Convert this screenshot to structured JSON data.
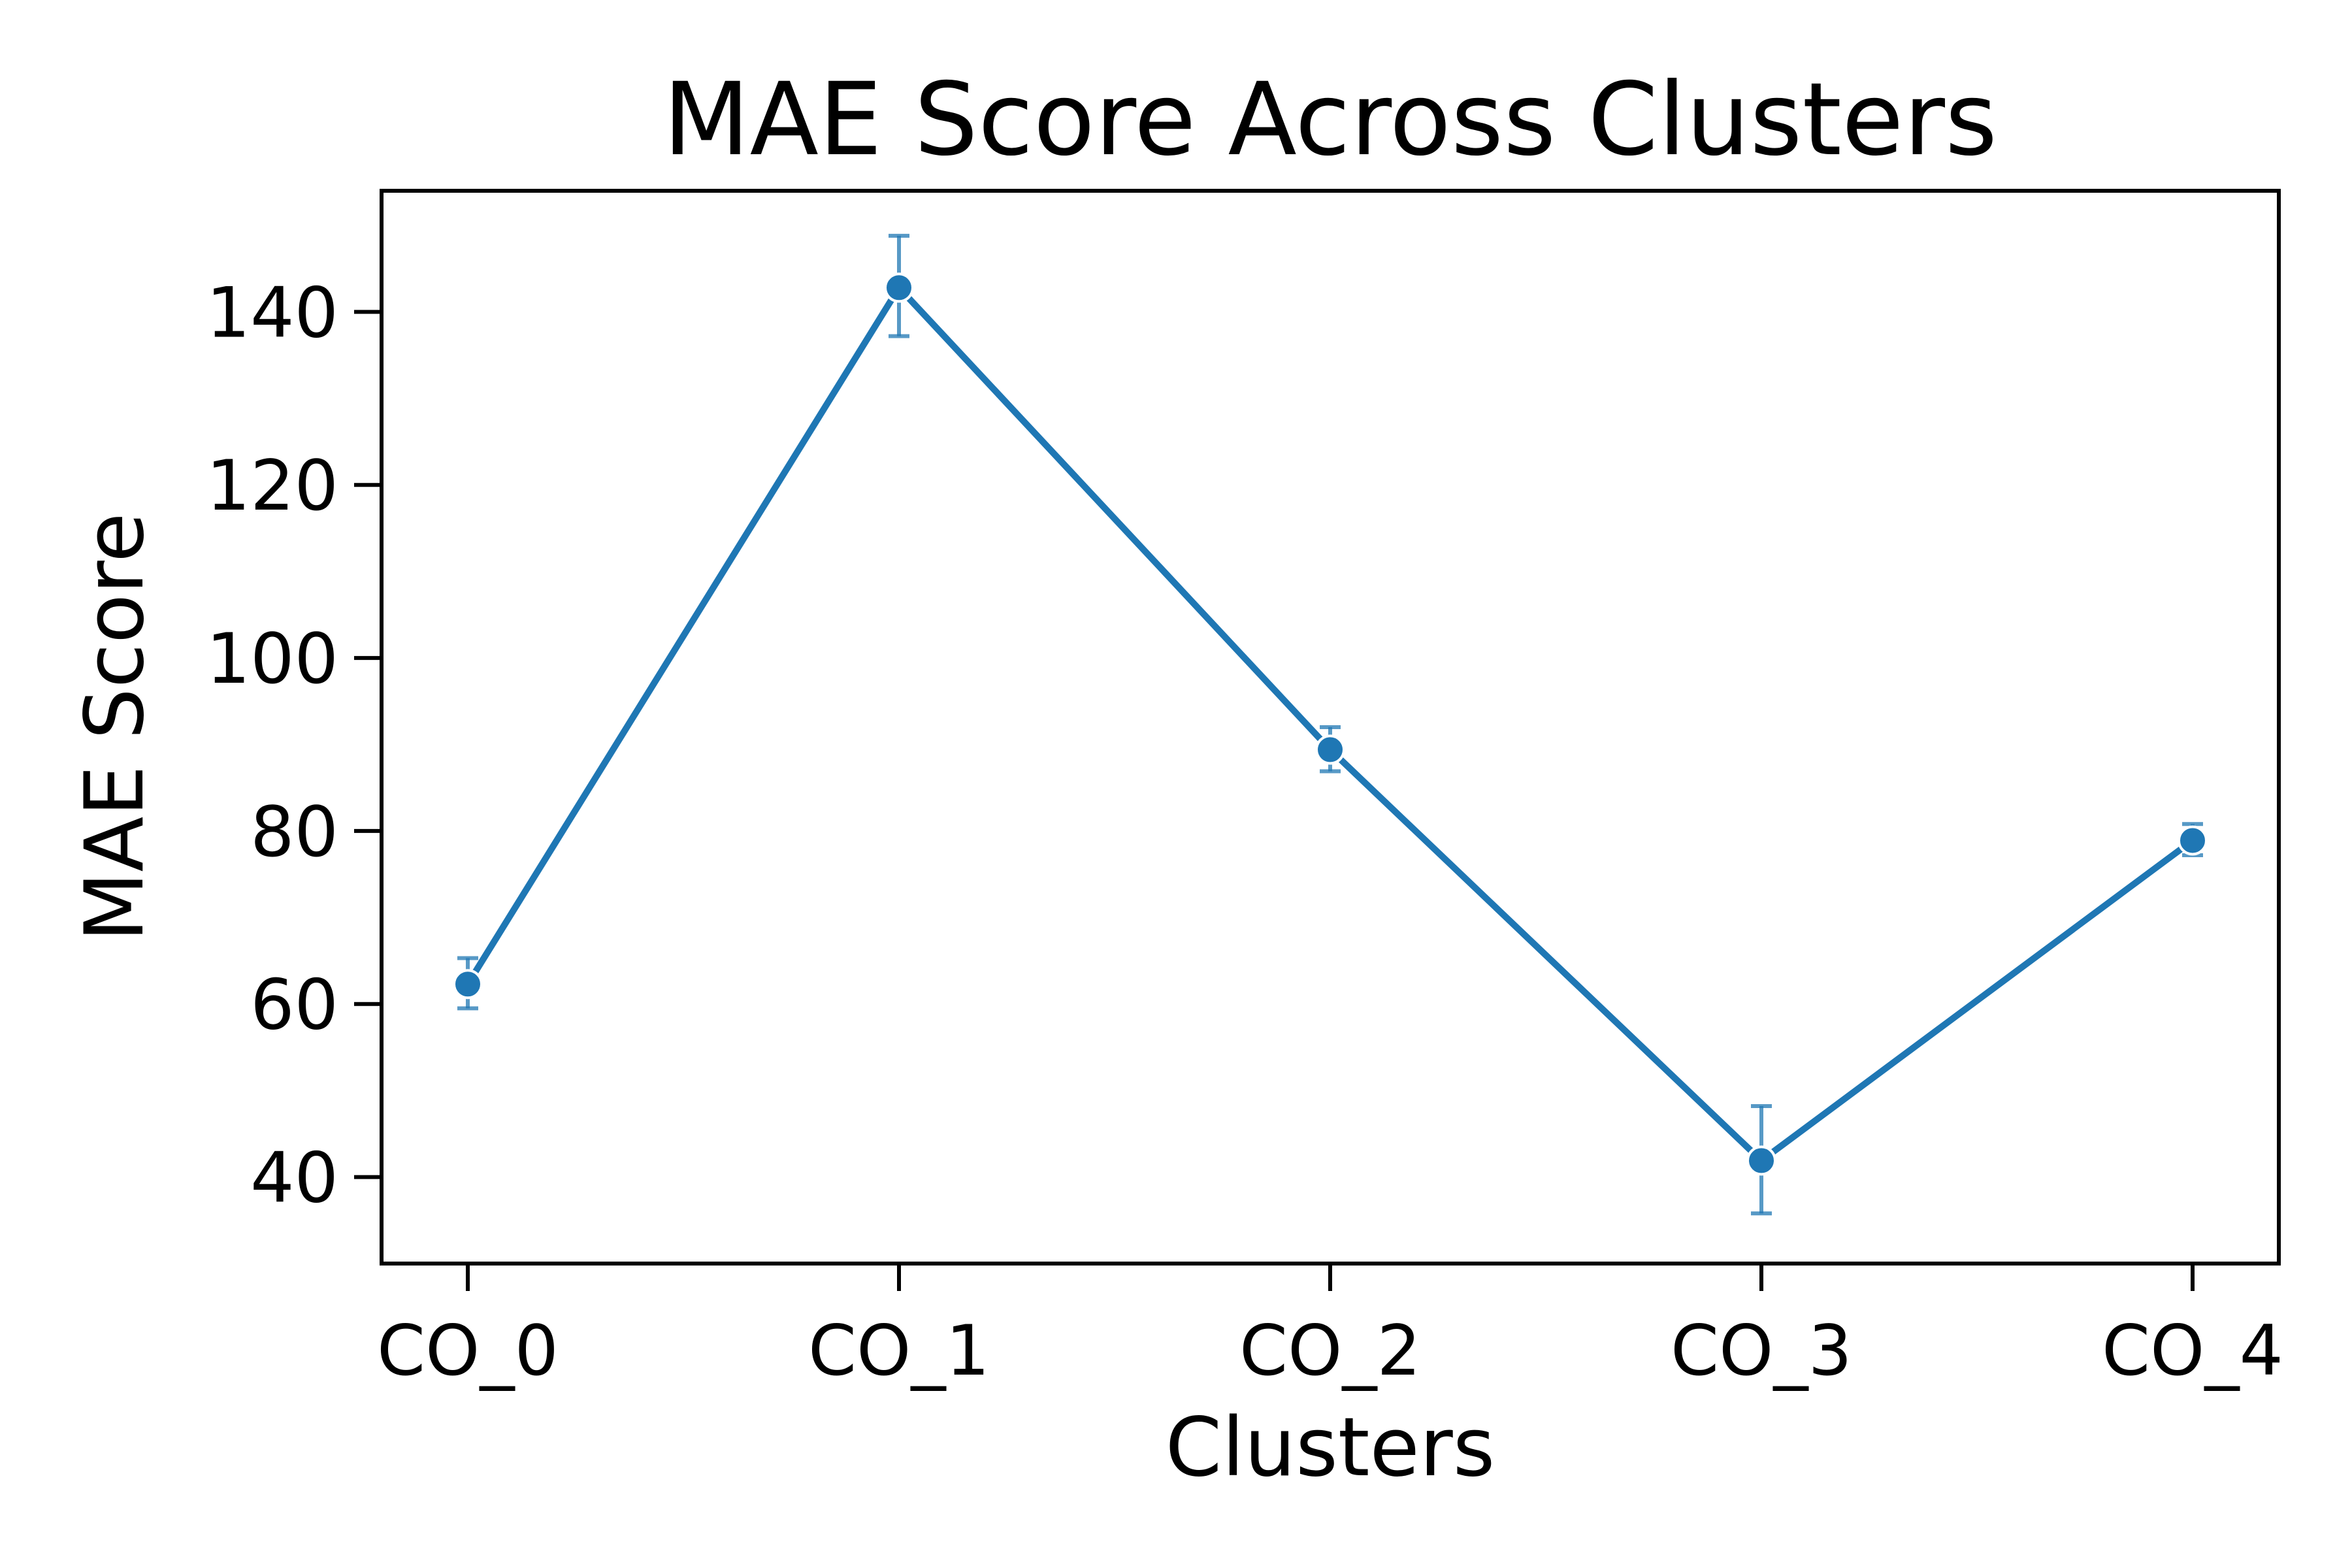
{
  "chart_data": {
    "type": "line",
    "title": "MAE Score Across Clusters",
    "xlabel": "Clusters",
    "ylabel": "MAE Score",
    "categories": [
      "CO_0",
      "CO_1",
      "CO_2",
      "CO_3",
      "CO_4"
    ],
    "series": [
      {
        "values": [
          62.3,
          142.8,
          89.4,
          41.9,
          78.9
        ],
        "error_low": [
          59.5,
          137.2,
          86.9,
          35.8,
          77.2
        ],
        "error_high": [
          65.3,
          148.8,
          92.0,
          48.2,
          80.8
        ]
      }
    ],
    "ylim": [
      30,
      154
    ],
    "yticks": [
      40,
      60,
      80,
      100,
      120,
      140
    ],
    "grid": false,
    "line_color": "#1f77b4"
  }
}
